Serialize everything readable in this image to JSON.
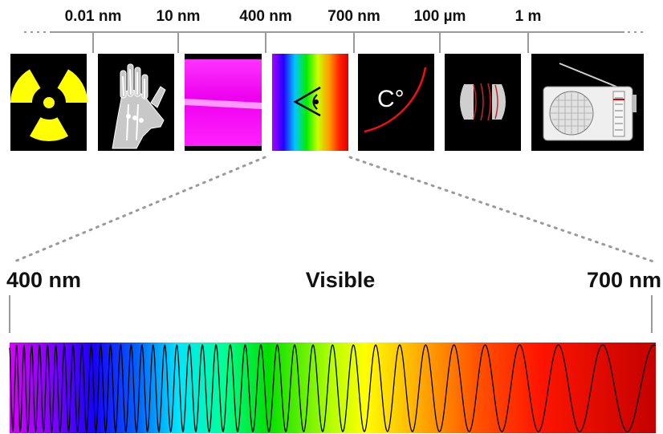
{
  "scale_labels": [
    "0.01 nm",
    "10 nm",
    "400 nm",
    "700 nm",
    "100 µm",
    "1 m"
  ],
  "visible_band": {
    "left_label": "400 nm",
    "title": "Visible",
    "right_label": "700 nm"
  },
  "panels": [
    {
      "icon": "radiation-icon"
    },
    {
      "icon": "xray-hand-icon"
    },
    {
      "icon": "ultraviolet-icon"
    },
    {
      "icon": "eye-icon"
    },
    {
      "icon": "heat-icon",
      "text": "C°"
    },
    {
      "icon": "microwave-icon"
    },
    {
      "icon": "radio-icon"
    }
  ],
  "colors": {
    "panel_bg": "#000000",
    "radiation": "#ffff00",
    "uv": "#ff00ff",
    "heat_arc": "#ee1111",
    "axis": "#9a9a9a"
  }
}
